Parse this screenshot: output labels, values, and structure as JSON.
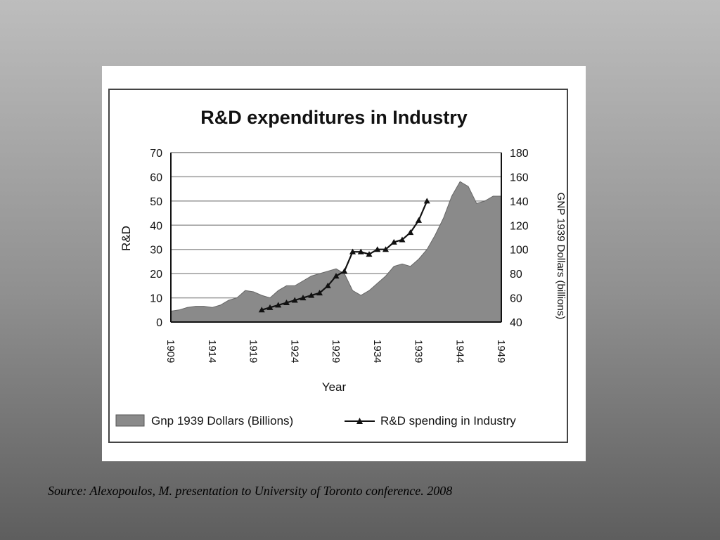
{
  "slide": {
    "source": "Source: Alexopoulos, M. presentation to University of Toronto conference. 2008"
  },
  "chart_data": {
    "type": "area",
    "title": "R&D expenditures in Industry",
    "xlabel": "Year",
    "ylabel_left": "R&D",
    "ylabel_right": "GNP 1939 Dollars (billions)",
    "x_ticks": [
      "1909",
      "1914",
      "1919",
      "1924",
      "1929",
      "1934",
      "1939",
      "1944",
      "1949"
    ],
    "xlim": [
      1909,
      1949
    ],
    "ylim_left": [
      0,
      70
    ],
    "ylim_right": [
      40,
      180
    ],
    "yticks_left": [
      0,
      10,
      20,
      30,
      40,
      50,
      60,
      70
    ],
    "yticks_right": [
      40,
      60,
      80,
      100,
      120,
      140,
      160,
      180
    ],
    "grid": true,
    "legend": "bottom",
    "colors": {
      "gnp_fill": "#8a8a8a",
      "rd_line": "#111111",
      "grid": "#9a9a9a"
    },
    "series": [
      {
        "name": "Gnp 1939 Dollars (Billions)",
        "type": "area",
        "axis": "right",
        "x": [
          1909,
          1910,
          1911,
          1912,
          1913,
          1914,
          1915,
          1916,
          1917,
          1918,
          1919,
          1920,
          1921,
          1922,
          1923,
          1924,
          1925,
          1926,
          1927,
          1928,
          1929,
          1930,
          1931,
          1932,
          1933,
          1934,
          1935,
          1936,
          1937,
          1938,
          1939,
          1940,
          1941,
          1942,
          1943,
          1944,
          1945,
          1946,
          1947,
          1948,
          1949
        ],
        "values": [
          49,
          50,
          52,
          53,
          53,
          52,
          54,
          58,
          60,
          66,
          65,
          62,
          60,
          66,
          70,
          70,
          74,
          78,
          80,
          82,
          84,
          80,
          66,
          62,
          66,
          72,
          78,
          86,
          88,
          86,
          92,
          100,
          112,
          126,
          144,
          156,
          152,
          138,
          140,
          144,
          144
        ]
      },
      {
        "name": "R&D spending in Industry",
        "type": "line",
        "axis": "left",
        "marker": "triangle",
        "x": [
          1920,
          1921,
          1922,
          1923,
          1924,
          1925,
          1926,
          1927,
          1928,
          1929,
          1930,
          1931,
          1932,
          1933,
          1934,
          1935,
          1936,
          1937,
          1938,
          1939,
          1940
        ],
        "values": [
          5,
          6,
          7,
          8,
          9,
          10,
          11,
          12,
          15,
          19,
          21,
          29,
          29,
          28,
          30,
          30,
          33,
          34,
          37,
          42,
          50
        ]
      }
    ]
  }
}
